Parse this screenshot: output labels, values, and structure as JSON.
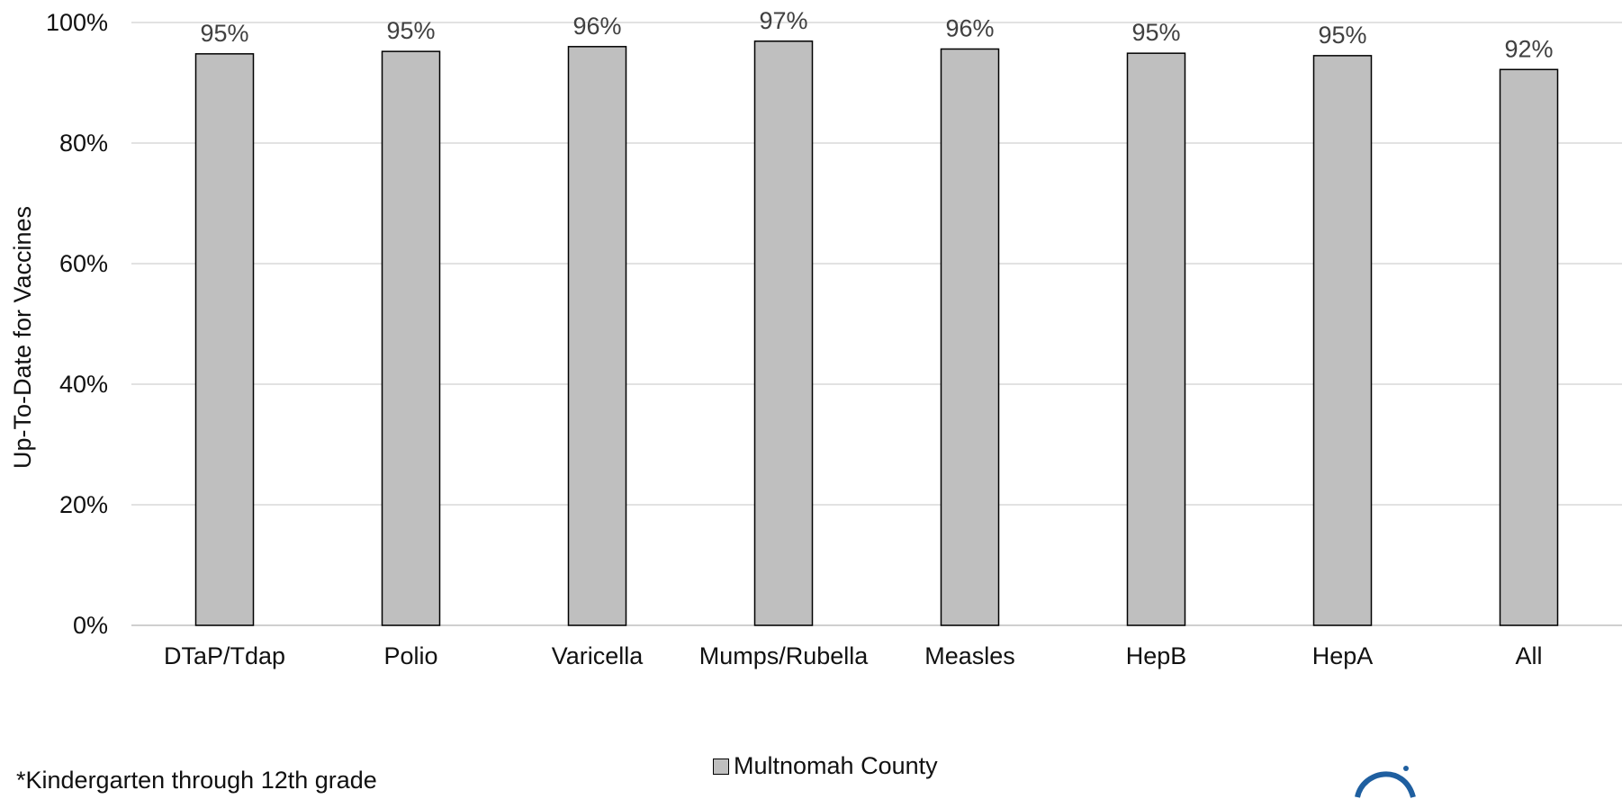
{
  "chart_data": {
    "type": "bar",
    "title": "",
    "xlabel": "",
    "ylabel": "Up-To-Date for Vaccines",
    "ylim": [
      0,
      100
    ],
    "yticks": [
      0,
      20,
      40,
      60,
      80,
      100
    ],
    "ytick_labels": [
      "0%",
      "20%",
      "40%",
      "60%",
      "80%",
      "100%"
    ],
    "grid": "horizontal",
    "categories": [
      "DTaP/Tdap",
      "Polio",
      "Varicella",
      "Mumps/Rubella",
      "Measles",
      "HepB",
      "HepA",
      "All"
    ],
    "series": [
      {
        "name": "Multnomah County",
        "values": [
          94.8,
          95.2,
          96.0,
          96.9,
          95.6,
          94.9,
          94.5,
          92.2
        ],
        "labels": [
          "95%",
          "95%",
          "96%",
          "97%",
          "96%",
          "95%",
          "95%",
          "92%"
        ],
        "color": "#bfbfbf",
        "edge_color": "#000000"
      }
    ],
    "legend_position": "bottom",
    "gridline_color": "#d9d9d9"
  },
  "footnote": "*Kindergarten through 12th grade"
}
